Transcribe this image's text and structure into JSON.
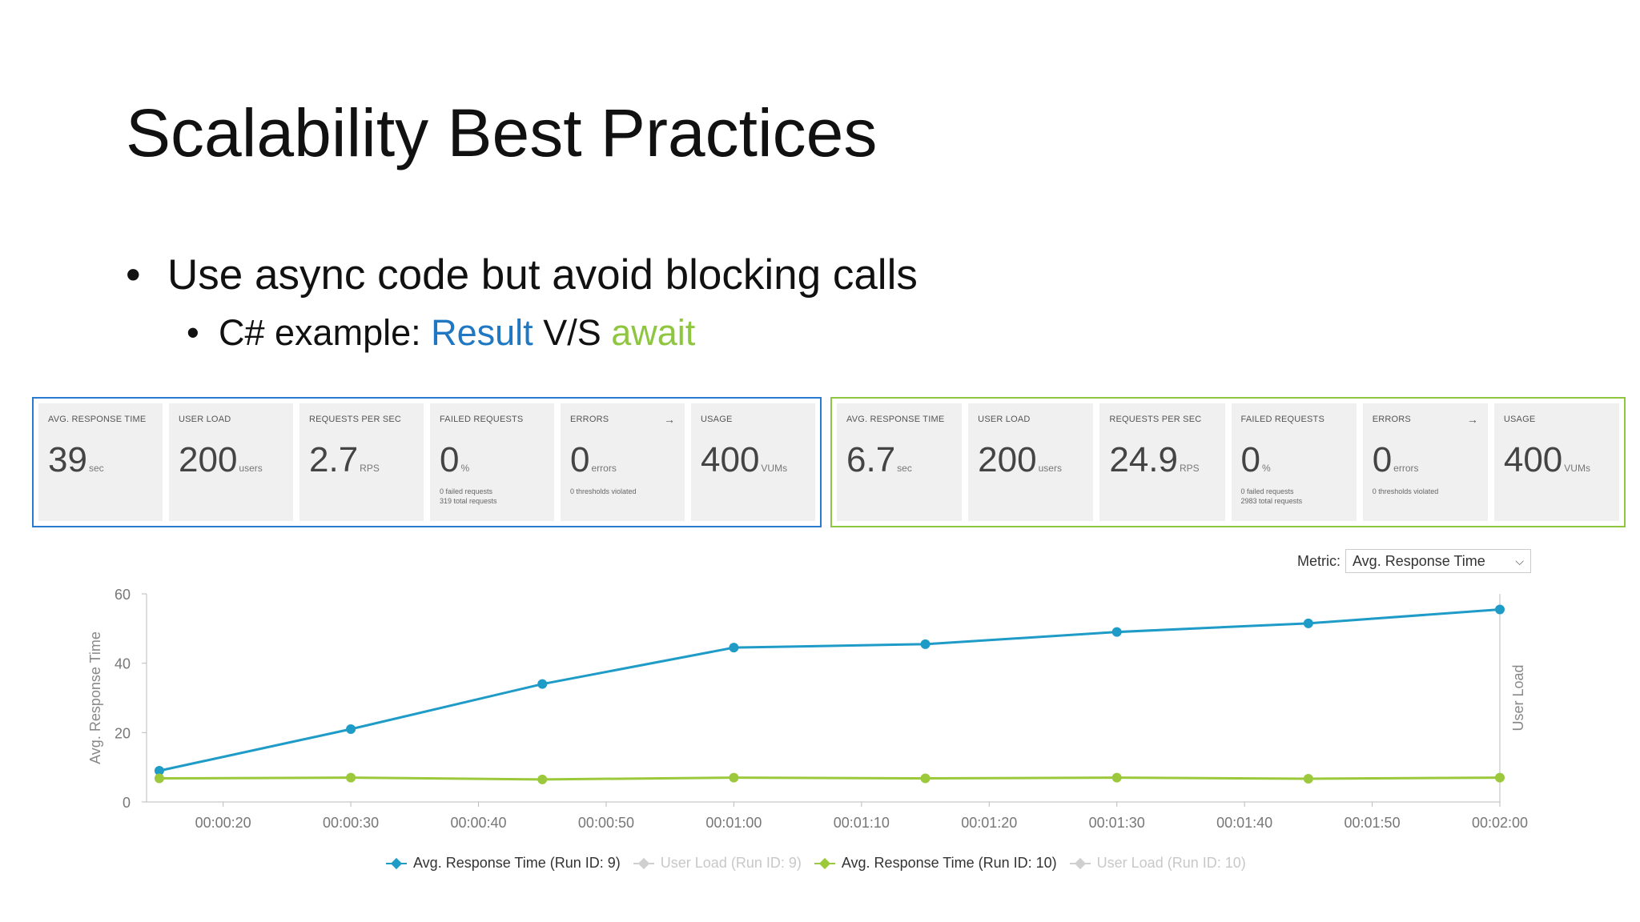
{
  "slide": {
    "title": "Scalability Best Practices",
    "bullet1": "Use async code but avoid blocking calls",
    "bullet2_prefix": "C# example: ",
    "bullet2_result": "Result",
    "bullet2_vs": " V/S ",
    "bullet2_await": "await"
  },
  "colors": {
    "blue": "#1f78c1",
    "green": "#8ec63f",
    "run9_line": "#1e9bc7",
    "run10_line": "#9cc93b"
  },
  "panels": [
    {
      "tiles": [
        {
          "label": "AVG. RESPONSE TIME",
          "value": "39",
          "unit": "sec"
        },
        {
          "label": "USER LOAD",
          "value": "200",
          "unit": "users"
        },
        {
          "label": "REQUESTS PER SEC",
          "value": "2.7",
          "unit": "RPS"
        },
        {
          "label": "FAILED REQUESTS",
          "value": "0",
          "unit": "%",
          "sub1": "0 failed requests",
          "sub2": "319 total requests"
        },
        {
          "label": "ERRORS",
          "value": "0",
          "unit": "errors",
          "sub1": "0 thresholds violated",
          "sub2": ""
        },
        {
          "label": "USAGE",
          "value": "400",
          "unit": "VUMs"
        }
      ]
    },
    {
      "tiles": [
        {
          "label": "AVG. RESPONSE TIME",
          "value": "6.7",
          "unit": "sec"
        },
        {
          "label": "USER LOAD",
          "value": "200",
          "unit": "users"
        },
        {
          "label": "REQUESTS PER SEC",
          "value": "24.9",
          "unit": "RPS"
        },
        {
          "label": "FAILED REQUESTS",
          "value": "0",
          "unit": "%",
          "sub1": "0 failed requests",
          "sub2": "2983 total requests"
        },
        {
          "label": "ERRORS",
          "value": "0",
          "unit": "errors",
          "sub1": "0 thresholds violated",
          "sub2": ""
        },
        {
          "label": "USAGE",
          "value": "400",
          "unit": "VUMs"
        }
      ]
    }
  ],
  "metric": {
    "label": "Metric:",
    "selected": "Avg. Response Time"
  },
  "chart_data": {
    "type": "line",
    "ylabel": "Avg. Response Time",
    "y2label": "User Load",
    "ylim": [
      0,
      60
    ],
    "yticks": [
      0,
      20,
      40,
      60
    ],
    "xticks": [
      "00:00:20",
      "00:00:30",
      "00:00:40",
      "00:00:50",
      "00:01:00",
      "00:01:10",
      "00:01:20",
      "00:01:30",
      "00:01:40",
      "00:01:50",
      "00:02:00"
    ],
    "xlim_seconds": [
      14,
      120
    ],
    "xtick_seconds": [
      20,
      30,
      40,
      50,
      60,
      70,
      80,
      90,
      100,
      110,
      120
    ],
    "grid": false,
    "legend_position": "bottom",
    "series": [
      {
        "name": "Avg. Response Time (Run ID: 9)",
        "color": "#1e9bc7",
        "active": true,
        "x": [
          15,
          30,
          45,
          60,
          75,
          90,
          105,
          120
        ],
        "y": [
          9,
          21,
          34,
          44.5,
          45.5,
          49,
          51.5,
          55.5
        ]
      },
      {
        "name": "User Load (Run ID: 9)",
        "color": "#cfcfcf",
        "active": false,
        "x": [],
        "y": []
      },
      {
        "name": "Avg. Response Time (Run ID: 10)",
        "color": "#9cc93b",
        "active": true,
        "x": [
          15,
          30,
          45,
          60,
          75,
          90,
          105,
          120
        ],
        "y": [
          6.8,
          7,
          6.5,
          7,
          6.8,
          7,
          6.7,
          7
        ]
      },
      {
        "name": "User Load (Run ID: 10)",
        "color": "#cfcfcf",
        "active": false,
        "x": [],
        "y": []
      }
    ]
  }
}
